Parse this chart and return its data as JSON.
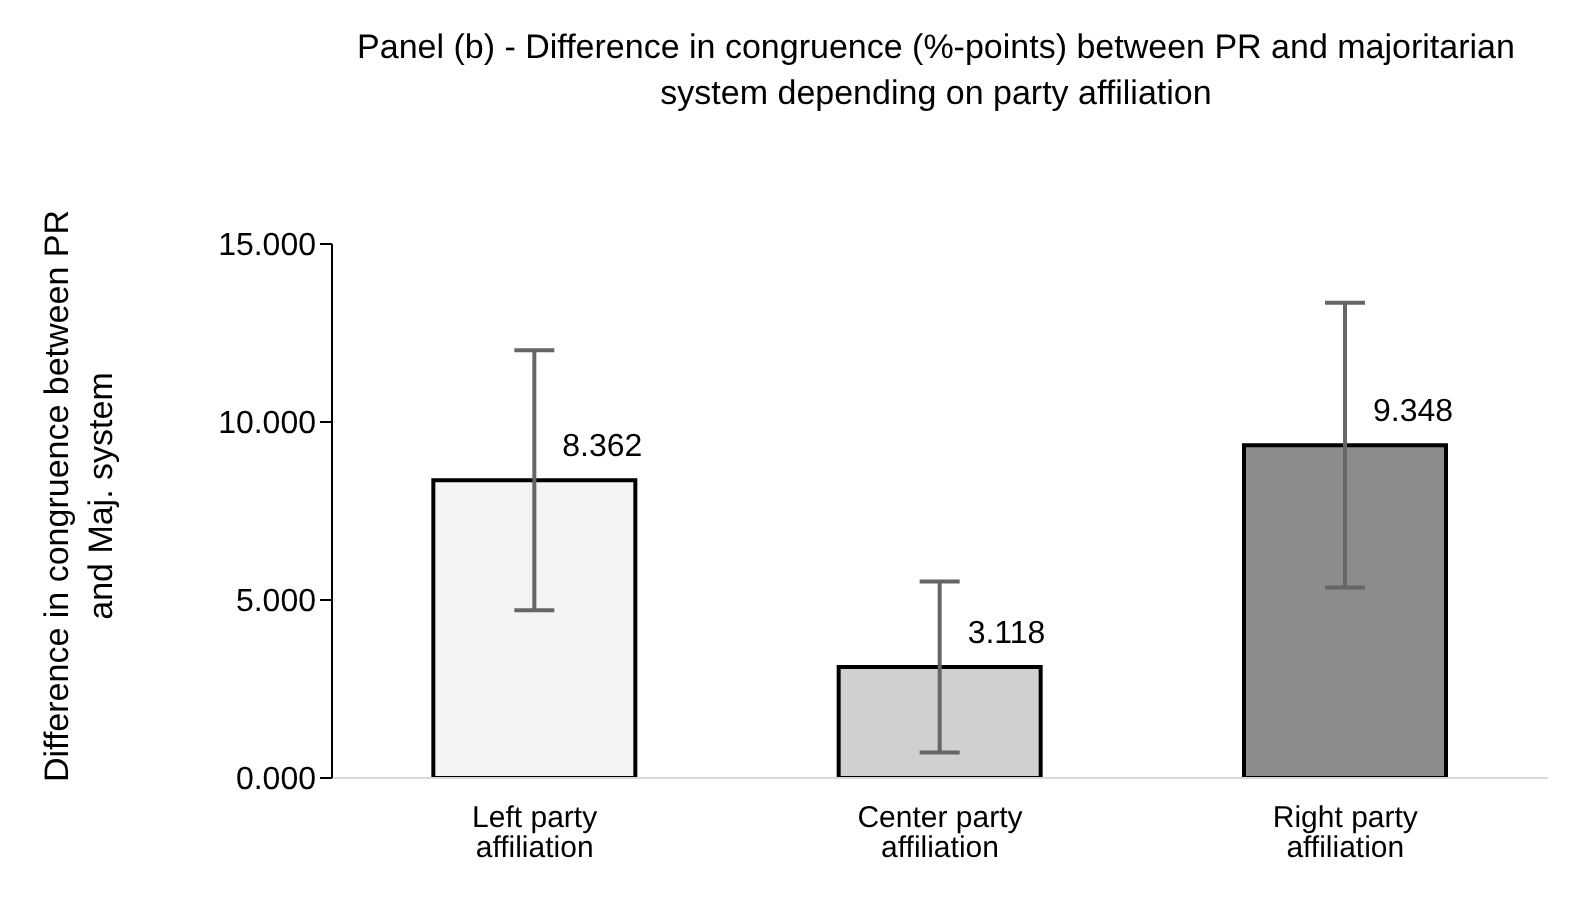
{
  "chart_data": {
    "type": "bar",
    "title": "Panel (b) - Difference in congruence (%-points) between PR and majoritarian system depending on party affiliation",
    "ylabel": "Difference in congruence between PR and Maj. system",
    "categories": [
      "Left party affiliation",
      "Center party affiliation",
      "Right party affiliation"
    ],
    "values": [
      8.362,
      3.118,
      9.348
    ],
    "errors": [
      3.65,
      2.4,
      4.0
    ],
    "colors": [
      "#f4f4f4",
      "#d0d0d0",
      "#8c8c8c"
    ],
    "ylim": [
      0,
      15
    ],
    "yticks": [
      {
        "value": 0,
        "label": "0.000"
      },
      {
        "value": 5,
        "label": "5.000"
      },
      {
        "value": 10,
        "label": "10.000"
      },
      {
        "value": 15,
        "label": "15.000"
      }
    ],
    "data_labels": true,
    "grid": false,
    "legend": false
  }
}
